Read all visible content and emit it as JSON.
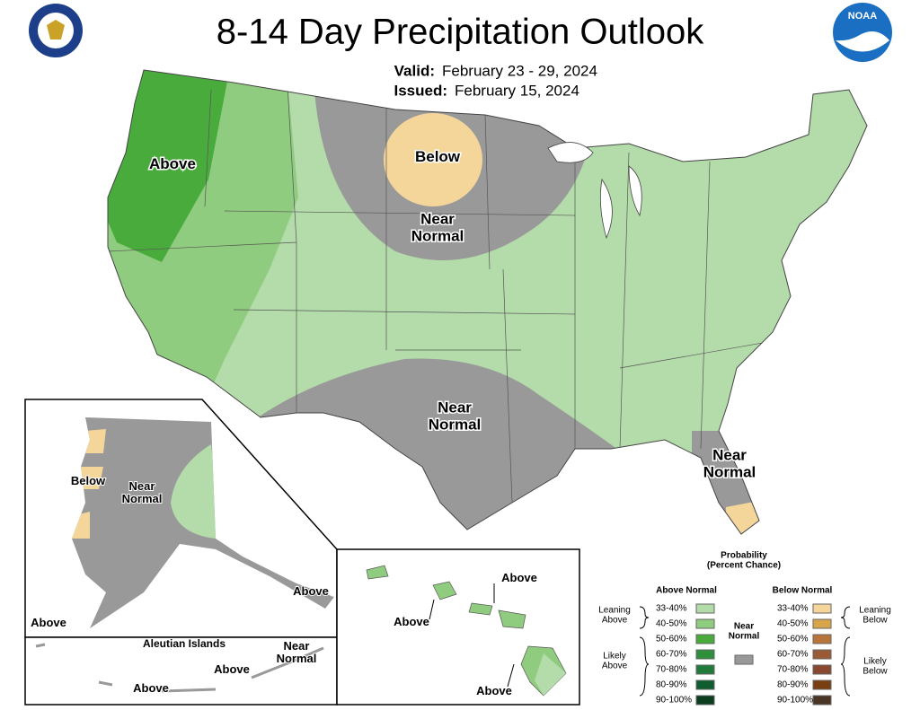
{
  "header": {
    "title": "8-14 Day Precipitation Outlook",
    "valid_label": "Valid:",
    "valid": "February 23 - 29, 2024",
    "issued_label": "Issued:",
    "issued": "February 15, 2024",
    "logo": "NOAA"
  },
  "conus": {
    "labels": [
      [
        "Above"
      ],
      [
        "Below"
      ],
      [
        "Near",
        "Normal"
      ],
      [
        "Near",
        "Normal"
      ],
      [
        "Near",
        "Normal"
      ]
    ]
  },
  "alaska": {
    "labels": [
      [
        "Below"
      ],
      [
        "Near",
        "Normal"
      ],
      [
        "Above"
      ],
      [
        "Above"
      ]
    ]
  },
  "aleutians": {
    "title": "Aleutian Islands",
    "labels": [
      [
        "Near",
        "Normal"
      ],
      [
        "Above"
      ],
      [
        "Above"
      ]
    ]
  },
  "hawaii": {
    "labels": [
      [
        "Above"
      ],
      [
        "Above"
      ],
      [
        "Above"
      ]
    ]
  },
  "legend": {
    "title": [
      "Probability",
      "(Percent Chance)"
    ],
    "above_heading": "Above Normal",
    "below_heading": "Below Normal",
    "near": [
      "Near",
      "Normal"
    ],
    "near_color": "#999999",
    "above": [
      {
        "range": "33-40%",
        "color": "#b4dcaa"
      },
      {
        "range": "40-50%",
        "color": "#8fcc7f"
      },
      {
        "range": "50-60%",
        "color": "#4aab3d"
      },
      {
        "range": "60-70%",
        "color": "#2f8f3a"
      },
      {
        "range": "70-80%",
        "color": "#1f7a3c"
      },
      {
        "range": "80-90%",
        "color": "#0f5c2e"
      },
      {
        "range": "90-100%",
        "color": "#0b3d1f"
      }
    ],
    "below": [
      {
        "range": "33-40%",
        "color": "#f4d69a"
      },
      {
        "range": "40-50%",
        "color": "#d9a54b"
      },
      {
        "range": "50-60%",
        "color": "#b8743b"
      },
      {
        "range": "60-70%",
        "color": "#9a5a36"
      },
      {
        "range": "70-80%",
        "color": "#8a4830"
      },
      {
        "range": "80-90%",
        "color": "#7a3f10"
      },
      {
        "range": "90-100%",
        "color": "#4a3525"
      }
    ],
    "leaning_above": [
      "Leaning",
      "Above"
    ],
    "likely_above": [
      "Likely",
      "Above"
    ],
    "leaning_below": [
      "Leaning",
      "Below"
    ],
    "likely_below": [
      "Likely",
      "Below"
    ]
  }
}
